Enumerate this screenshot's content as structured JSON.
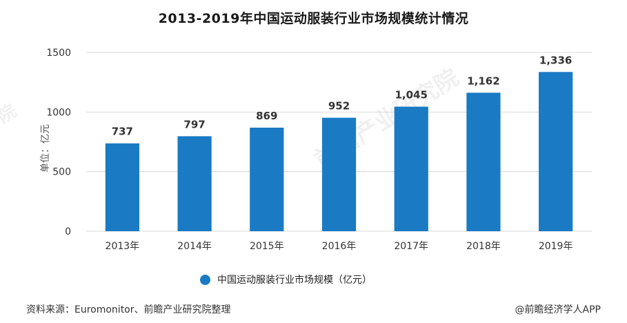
{
  "colors": {
    "bar": "#1a7ac4",
    "grid": "#d9d9d9",
    "axis_text": "#333333"
  },
  "chart_data": {
    "type": "bar",
    "title": "2013-2019年中国运动服装行业市场规模统计情况",
    "ylabel": "单位：亿元",
    "categories": [
      "2013年",
      "2014年",
      "2015年",
      "2016年",
      "2017年",
      "2018年",
      "2019年"
    ],
    "series": [
      {
        "name": "中国运动服装行业市场规模（亿元）",
        "values": [
          737,
          797,
          869,
          952,
          1045,
          1162,
          1336
        ],
        "labels": [
          "737",
          "797",
          "869",
          "952",
          "1,045",
          "1,162",
          "1,336"
        ]
      }
    ],
    "yticks": [
      "0",
      "500",
      "1000",
      "1500"
    ],
    "ylim": [
      0,
      1500
    ],
    "grid": true,
    "legend_position": "bottom"
  },
  "footer": {
    "source": "资料来源：Euromonitor、前瞻产业研究院整理",
    "credit": "@前瞻经济学人APP"
  },
  "watermark": {
    "text": "前瞻产业研究院"
  }
}
